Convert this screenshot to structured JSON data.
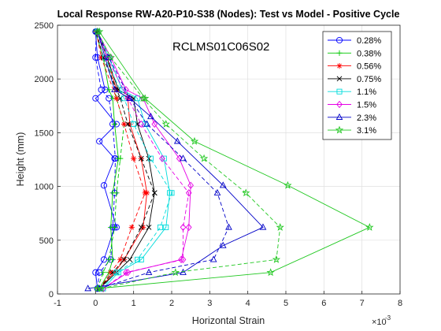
{
  "chart_data": {
    "type": "line",
    "title": "Local Response RW-A20-P10-S38 (Nodes): Test vs Model - Positive Cycle",
    "annotation": "RCLMS01C06S02",
    "xlabel": "Horizontal Strain",
    "ylabel": "Height (mm)",
    "x_exponent_label": "×10",
    "x_exponent_power": "-3",
    "x_scale": 0.001,
    "xlim": [
      -1,
      8
    ],
    "ylim": [
      0,
      2500
    ],
    "xticks": [
      -1,
      0,
      1,
      2,
      3,
      4,
      5,
      6,
      7,
      8
    ],
    "yticks": [
      0,
      500,
      1000,
      1500,
      2000,
      2500
    ],
    "grid": true,
    "legend_position": "top-right",
    "series": [
      {
        "name": "0.28%",
        "color": "#0000ff",
        "marker": "circle",
        "test": {
          "x": [
            0.05,
            0.0,
            0.22,
            0.5,
            0.55,
            0.22,
            0.5,
            0.1,
            0.55,
            0.0,
            0.25,
            0.05,
            0.0
          ],
          "y": [
            50,
            200,
            320,
            620,
            620,
            1010,
            1260,
            1420,
            1580,
            1820,
            1900,
            2200,
            2440
          ]
        },
        "model": {
          "x": [
            0.05,
            0.1,
            0.4,
            0.45,
            0.5,
            0.52,
            0.45,
            0.35,
            0.15,
            0.0,
            0.02
          ],
          "y": [
            50,
            200,
            320,
            620,
            940,
            1260,
            1580,
            1820,
            1900,
            2200,
            2440
          ]
        }
      },
      {
        "name": "0.38%",
        "color": "#00c800",
        "marker": "plus",
        "test": {
          "x": [
            0.1,
            0.35,
            0.45,
            0.4,
            0.45,
            0.6,
            0.5,
            0.45,
            0.35,
            0.2,
            0.0
          ],
          "y": [
            50,
            200,
            320,
            620,
            940,
            1260,
            1580,
            1820,
            1900,
            2200,
            2440
          ]
        },
        "model": {
          "x": [
            0.05,
            0.2,
            0.35,
            0.5,
            0.55,
            0.65,
            0.75,
            0.55,
            0.3,
            0.05
          ],
          "y": [
            50,
            200,
            320,
            620,
            940,
            1260,
            1580,
            1820,
            2200,
            2440
          ]
        }
      },
      {
        "name": "0.56%",
        "color": "#ff0000",
        "marker": "asterisk",
        "test": {
          "x": [
            0.1,
            0.5,
            0.75,
            1.25,
            1.35,
            1.2,
            0.9,
            0.85,
            0.55,
            0.3,
            0.05
          ],
          "y": [
            50,
            200,
            320,
            620,
            940,
            1260,
            1580,
            1820,
            1900,
            2200,
            2440
          ]
        },
        "model": {
          "x": [
            0.1,
            0.4,
            0.65,
            0.95,
            1.3,
            1.0,
            0.75,
            0.55,
            0.15,
            0.02
          ],
          "y": [
            50,
            200,
            320,
            620,
            940,
            1260,
            1580,
            1820,
            2200,
            2440
          ]
        }
      },
      {
        "name": "0.75%",
        "color": "#000000",
        "marker": "cross",
        "test": {
          "x": [
            0.1,
            0.55,
            0.9,
            1.4,
            1.55,
            1.4,
            1.1,
            1.0,
            0.6,
            0.3,
            0.05
          ],
          "y": [
            50,
            200,
            320,
            620,
            940,
            1260,
            1580,
            1820,
            1900,
            2200,
            2440
          ]
        },
        "model": {
          "x": [
            0.1,
            0.45,
            0.75,
            1.2,
            1.55,
            1.2,
            0.85,
            0.65,
            0.2,
            0.02
          ],
          "y": [
            50,
            200,
            320,
            620,
            940,
            1260,
            1580,
            1820,
            2200,
            2440
          ]
        }
      },
      {
        "name": "1.1%",
        "color": "#00dcdc",
        "marker": "square",
        "test": {
          "x": [
            0.2,
            0.6,
            1.2,
            1.85,
            1.95,
            1.8,
            1.3,
            1.1,
            0.7,
            0.35,
            0.05
          ],
          "y": [
            50,
            200,
            320,
            620,
            940,
            1260,
            1580,
            1820,
            1900,
            2200,
            2440
          ]
        },
        "model": {
          "x": [
            0.15,
            0.55,
            1.1,
            1.7,
            2.0,
            1.45,
            1.0,
            0.75,
            0.25,
            0.05
          ],
          "y": [
            50,
            200,
            320,
            620,
            940,
            1260,
            1580,
            1820,
            2200,
            2440
          ]
        }
      },
      {
        "name": "1.5%",
        "color": "#e600e6",
        "marker": "diamond",
        "test": {
          "x": [
            0.2,
            0.85,
            2.25,
            2.45,
            2.5,
            2.2,
            1.55,
            1.25,
            0.8,
            0.4,
            0.05
          ],
          "y": [
            50,
            200,
            320,
            620,
            1010,
            1260,
            1580,
            1820,
            1900,
            2200,
            2440
          ]
        },
        "model": {
          "x": [
            0.2,
            0.8,
            2.3,
            2.3,
            2.45,
            1.75,
            1.2,
            0.85,
            0.3,
            0.05
          ],
          "y": [
            50,
            200,
            320,
            620,
            940,
            1260,
            1580,
            1820,
            2200,
            2440
          ]
        }
      },
      {
        "name": "2.3%",
        "color": "#0000c8",
        "marker": "triangle",
        "test": {
          "x": [
            -0.2,
            2.3,
            3.35,
            4.4,
            3.35,
            2.15,
            1.45,
            0.9,
            0.5,
            0.05
          ],
          "y": [
            50,
            200,
            450,
            620,
            1010,
            1420,
            1650,
            1820,
            1900,
            2440
          ]
        },
        "model": {
          "x": [
            0.1,
            1.4,
            3.1,
            3.5,
            3.2,
            2.3,
            1.35,
            0.9,
            0.35,
            0.05
          ],
          "y": [
            50,
            200,
            320,
            620,
            940,
            1260,
            1580,
            1820,
            2200,
            2440
          ]
        }
      },
      {
        "name": "3.1%",
        "color": "#20c820",
        "marker": "pentagram",
        "test": {
          "x": [
            0.05,
            4.6,
            7.2,
            5.05,
            2.6,
            1.3,
            0.1
          ],
          "y": [
            50,
            200,
            620,
            1010,
            1420,
            1820,
            2440
          ]
        },
        "model": {
          "x": [
            0.15,
            2.1,
            4.75,
            4.85,
            3.95,
            2.85,
            1.85,
            1.25,
            0.4,
            0.05
          ],
          "y": [
            50,
            200,
            320,
            620,
            940,
            1260,
            1580,
            1820,
            2200,
            2440
          ]
        }
      }
    ]
  }
}
